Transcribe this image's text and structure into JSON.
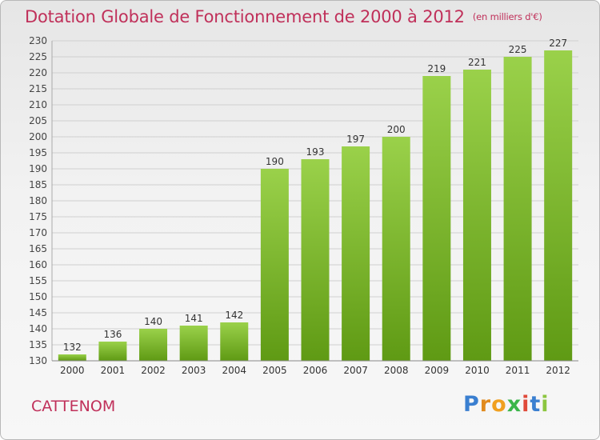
{
  "header": {
    "title": "Dotation Globale de Fonctionnement de 2000 à 2012",
    "unit": "(en milliers d'€)"
  },
  "footer": {
    "commune": "CATTENOM",
    "logo": {
      "letters": [
        "P",
        "r",
        "o",
        "x",
        "i",
        "t",
        "i"
      ],
      "colors": [
        "#3a7fd0",
        "#e08a1e",
        "#f0a020",
        "#3bb54a",
        "#e04a3a",
        "#3a7fd0",
        "#8cc63f"
      ]
    }
  },
  "chart_data": {
    "type": "bar",
    "categories": [
      "2000",
      "2001",
      "2002",
      "2003",
      "2004",
      "2005",
      "2006",
      "2007",
      "2008",
      "2009",
      "2010",
      "2011",
      "2012"
    ],
    "values": [
      132,
      136,
      140,
      141,
      142,
      190,
      193,
      197,
      200,
      219,
      221,
      225,
      227
    ],
    "ylim": [
      130,
      230
    ],
    "ytick_step": 5,
    "grid": true,
    "bar_color_top": "#9ad14a",
    "bar_color_bottom": "#5f9a14"
  }
}
